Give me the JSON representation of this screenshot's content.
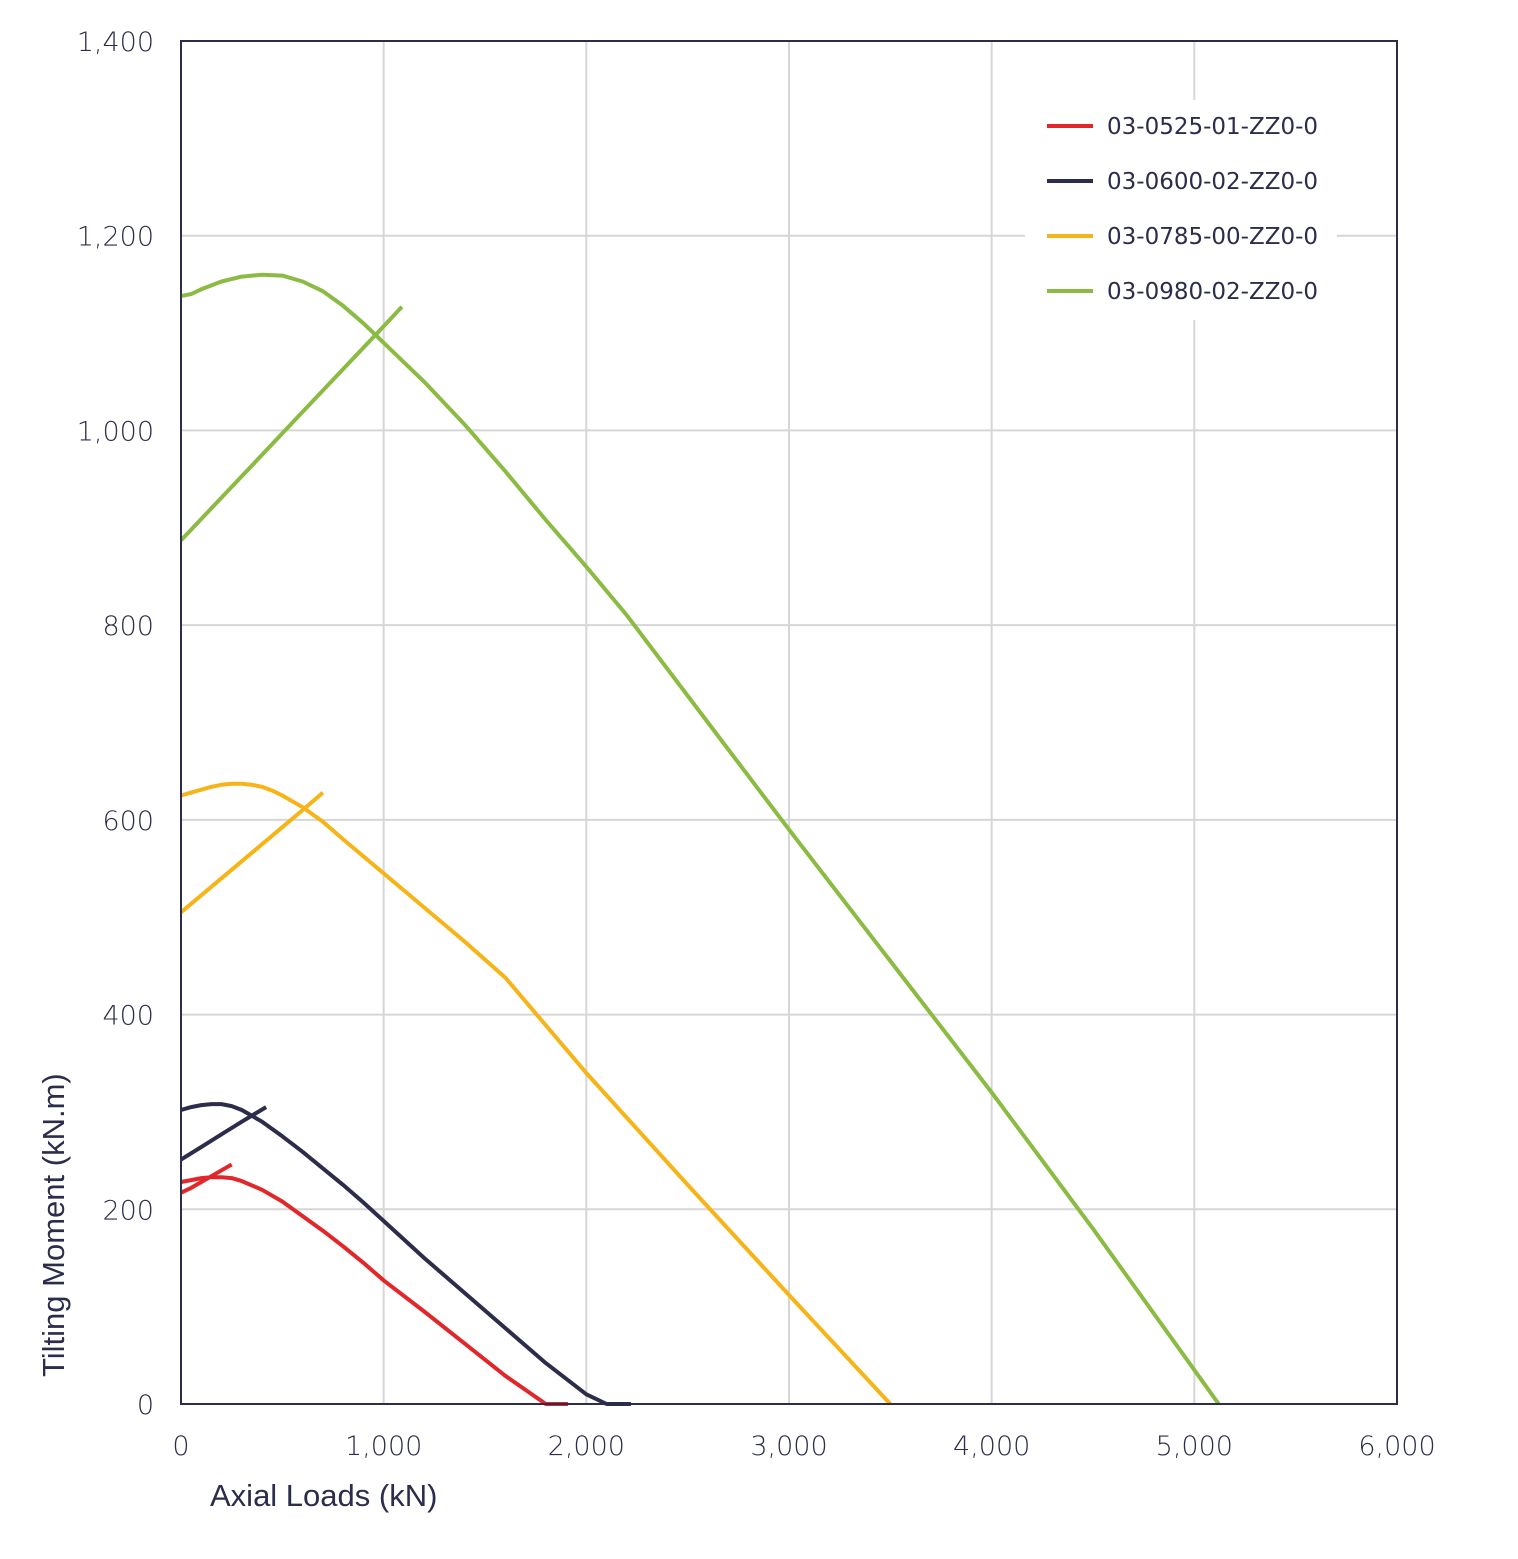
{
  "chart_data": {
    "type": "line",
    "title": "",
    "xlabel": "Axial Loads (kN)",
    "ylabel": "Tilting Moment (kN.m)",
    "xlim": [
      0,
      6000
    ],
    "ylim": [
      0,
      1400
    ],
    "x_ticks": [
      0,
      1000,
      2000,
      3000,
      4000,
      5000,
      6000
    ],
    "x_tick_labels": [
      "0",
      "1,000",
      "2,000",
      "3,000",
      "4,000",
      "5,000",
      "6,000"
    ],
    "y_ticks": [
      0,
      200,
      400,
      600,
      800,
      1000,
      1200,
      1400
    ],
    "y_tick_labels": [
      "0",
      "200",
      "400",
      "600",
      "800",
      "1,000",
      "1,200",
      "1,400"
    ],
    "grid": true,
    "legend_position": "top-right",
    "series": [
      {
        "name": "03-0525-01-ZZ0-0",
        "color": "#e2272b",
        "lines": [
          {
            "x": [
              0,
              50,
              100,
              150,
              200,
              250,
              300,
              400,
              500,
              600,
              700,
              800,
              900,
              1000,
              1200,
              1400,
              1600,
              1800,
              1910
            ],
            "y": [
              228,
              230,
              232,
              233,
              233,
              232,
              229,
              220,
              208,
              193,
              178,
              162,
              145,
              127,
              95,
              62,
              29,
              0,
              0
            ]
          },
          {
            "x": [
              0,
              50,
              100,
              150,
              200,
              250
            ],
            "y": [
              217,
              222,
              228,
              234,
              240,
              246
            ]
          }
        ]
      },
      {
        "name": "03-0600-02-ZZ0-0",
        "color": "#2b2d4a",
        "lines": [
          {
            "x": [
              0,
              50,
              100,
              150,
              200,
              250,
              300,
              400,
              500,
              600,
              700,
              800,
              900,
              1000,
              1200,
              1400,
              1600,
              1800,
              2000,
              2100,
              2220
            ],
            "y": [
              302,
              305,
              307,
              308,
              308,
              306,
              302,
              290,
              275,
              259,
              242,
              225,
              207,
              188,
              150,
              114,
              78,
              42,
              10,
              0,
              0
            ]
          },
          {
            "x": [
              0,
              100,
              200,
              300,
              420
            ],
            "y": [
              251,
              264,
              277,
              290,
              305
            ]
          }
        ]
      },
      {
        "name": "03-0785-00-ZZ0-0",
        "color": "#f6b418",
        "lines": [
          {
            "x": [
              0,
              50,
              100,
              150,
              200,
              250,
              300,
              350,
              400,
              450,
              500,
              600,
              700,
              800,
              1000,
              1200,
              1400,
              1600,
              2000,
              2500,
              3000,
              3500
            ],
            "y": [
              625,
              628,
              631,
              634,
              636,
              637,
              637,
              636,
              634,
              630,
              625,
              613,
              598,
              580,
              545,
              510,
              475,
              438,
              340,
              225,
              112,
              0
            ]
          },
          {
            "x": [
              0,
              200,
              400,
              600,
              700
            ],
            "y": [
              505,
              540,
              575,
              610,
              628
            ]
          }
        ]
      },
      {
        "name": "03-0980-02-ZZ0-0",
        "color": "#8bbb43",
        "lines": [
          {
            "x": [
              0,
              50,
              100,
              200,
              300,
              400,
              500,
              600,
              700,
              800,
              900,
              1000,
              1200,
              1400,
              1600,
              1800,
              2000,
              2200,
              2600,
              3000,
              3500,
              4000,
              4500,
              5000,
              5120
            ],
            "y": [
              1138,
              1140,
              1145,
              1153,
              1158,
              1160,
              1159,
              1153,
              1143,
              1128,
              1110,
              1090,
              1050,
              1006,
              958,
              908,
              860,
              810,
              700,
              590,
              455,
              320,
              180,
              35,
              0
            ]
          },
          {
            "x": [
              0,
              200,
              400,
              600,
              800,
              1000,
              1090
            ],
            "y": [
              887,
              931,
              975,
              1019,
              1063,
              1107,
              1127
            ]
          }
        ]
      }
    ]
  }
}
